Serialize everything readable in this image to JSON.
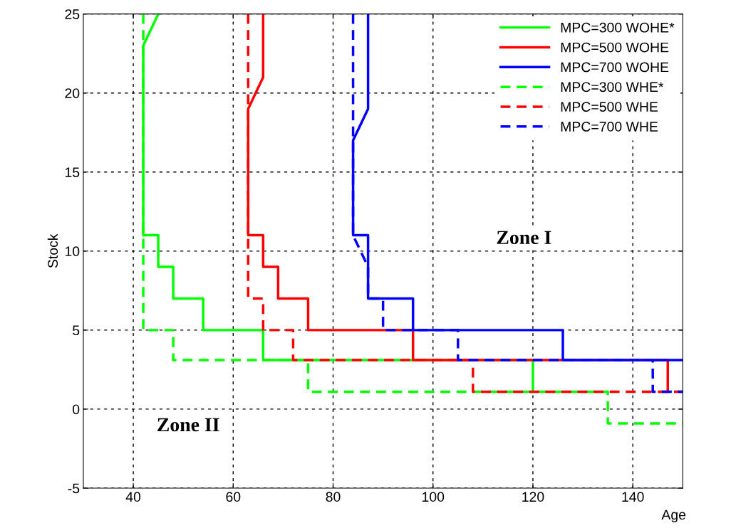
{
  "chart_data": {
    "type": "line",
    "xlabel": "Age",
    "ylabel": "Stock",
    "series": [
      {
        "name": "MPC=300 WOHE*",
        "color": "#00ff00",
        "line_style": "solid",
        "x": [
          45,
          42,
          42,
          45,
          45,
          48,
          48,
          54,
          54,
          66,
          66,
          120,
          120
        ],
        "values": [
          25,
          23,
          11,
          11,
          9,
          9,
          7,
          7,
          5,
          5,
          3.1,
          3.1,
          1.1
        ]
      },
      {
        "name": "MPC=500 WOHE",
        "color": "#ff0000",
        "line_style": "solid",
        "x": [
          66,
          66,
          63,
          63,
          66,
          66,
          69,
          69,
          75,
          75,
          96,
          96,
          147,
          147
        ],
        "values": [
          25,
          21,
          19,
          11,
          11,
          9,
          9,
          7,
          7,
          5,
          5,
          3.1,
          3.1,
          1.1
        ]
      },
      {
        "name": "MPC=700 WOHE",
        "color": "#0000ff",
        "line_style": "solid",
        "x": [
          87,
          87,
          84,
          84,
          87,
          87,
          96,
          96,
          126,
          126,
          150
        ],
        "values": [
          25,
          19,
          17,
          11,
          11,
          7,
          7,
          5,
          5,
          3.1,
          3.1
        ]
      },
      {
        "name": "MPC=300 WHE*",
        "color": "#00ff00",
        "line_style": "dashed",
        "x": [
          42,
          42,
          48,
          48,
          75,
          75,
          135,
          135,
          150
        ],
        "values": [
          25,
          5,
          5,
          3.1,
          3.1,
          1.1,
          1.1,
          -0.9,
          -0.9
        ]
      },
      {
        "name": "MPC=500 WHE",
        "color": "#ff0000",
        "line_style": "dashed",
        "x": [
          63,
          63,
          66,
          66,
          72,
          72,
          108,
          108,
          150
        ],
        "values": [
          25,
          7,
          7,
          5,
          5,
          3.1,
          3.1,
          1.1,
          1.1
        ]
      },
      {
        "name": "MPC=700 WHE",
        "color": "#0000ff",
        "line_style": "dashed",
        "x": [
          84,
          84,
          87,
          87,
          90,
          90,
          105,
          105,
          144,
          144,
          150
        ],
        "values": [
          25,
          11,
          9,
          7,
          7,
          5,
          5,
          3.1,
          3.1,
          1.1,
          1.1
        ]
      }
    ],
    "xlim": [
      30,
      150
    ],
    "xticks": [
      40,
      60,
      80,
      100,
      120,
      140
    ],
    "ylim": [
      -5,
      25
    ],
    "yticks": [
      -5,
      0,
      5,
      10,
      15,
      20,
      25
    ],
    "grid": true,
    "legend": "top right",
    "annotations": [
      "Zone I",
      "Zone II"
    ]
  }
}
